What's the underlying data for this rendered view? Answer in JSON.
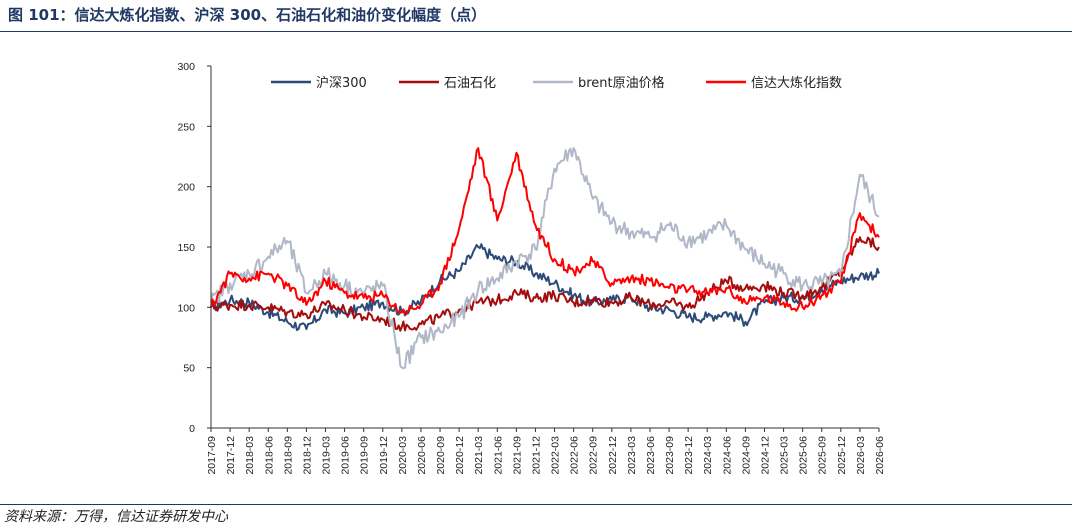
{
  "header": {
    "title": "图 101：信达大炼化指数、沪深 300、石油石化和油价变化幅度（点）"
  },
  "footer": {
    "source": "资料来源：万得，信达证券研发中心"
  },
  "colors": {
    "hs300": "#2e4a78",
    "petro": "#a50d0d",
    "brent": "#b0b8c8",
    "xinda": "#ff0000",
    "accent": "#1f3864"
  },
  "chart_data": {
    "type": "line",
    "title": "",
    "xlabel": "",
    "ylabel": "",
    "ylim": [
      0,
      300
    ],
    "yticks": [
      0,
      50,
      100,
      150,
      200,
      250,
      300
    ],
    "grid": false,
    "legend_position": "top",
    "x": [
      "2017-09",
      "2017-12",
      "2018-03",
      "2018-06",
      "2018-09",
      "2018-12",
      "2019-03",
      "2019-06",
      "2019-09",
      "2019-12",
      "2020-03",
      "2020-06",
      "2020-09",
      "2020-12",
      "2021-03",
      "2021-06",
      "2021-09",
      "2021-12",
      "2022-03",
      "2022-06",
      "2022-09",
      "2022-12",
      "2023-03",
      "2023-06",
      "2023-09",
      "2023-12",
      "2024-03",
      "2024-06",
      "2024-09",
      "2024-12",
      "2025-03",
      "2025-06",
      "2025-09",
      "2025-12",
      "2026-03",
      "2026-06"
    ],
    "series": [
      {
        "name": "沪深300",
        "color": "#2e4a78",
        "values": [
          100,
          106,
          104,
          96,
          88,
          82,
          98,
          95,
          100,
          104,
          96,
          105,
          122,
          130,
          150,
          140,
          138,
          128,
          120,
          110,
          104,
          106,
          108,
          100,
          98,
          92,
          92,
          96,
          88,
          104,
          108,
          108,
          115,
          122,
          126,
          128
        ]
      },
      {
        "name": "石油石化",
        "color": "#a50d0d",
        "values": [
          100,
          102,
          102,
          100,
          96,
          94,
          102,
          98,
          92,
          90,
          84,
          86,
          92,
          98,
          104,
          106,
          112,
          108,
          110,
          104,
          106,
          104,
          108,
          102,
          104,
          100,
          112,
          122,
          116,
          118,
          112,
          110,
          116,
          130,
          158,
          150
        ]
      },
      {
        "name": "brent原油价格",
        "color": "#b0b8c8",
        "values": [
          104,
          120,
          128,
          142,
          155,
          112,
          128,
          118,
          112,
          118,
          50,
          75,
          80,
          92,
          115,
          124,
          138,
          148,
          215,
          232,
          190,
          170,
          162,
          158,
          168,
          155,
          160,
          168,
          148,
          136,
          128,
          118,
          120,
          126,
          210,
          175
        ]
      },
      {
        "name": "信达大炼化指数",
        "color": "#ff0000",
        "values": [
          100,
          128,
          124,
          128,
          118,
          102,
          122,
          112,
          108,
          110,
          96,
          102,
          120,
          165,
          232,
          172,
          228,
          168,
          140,
          130,
          138,
          120,
          124,
          122,
          116,
          114,
          112,
          116,
          104,
          108,
          104,
          100,
          110,
          120,
          178,
          158
        ]
      }
    ]
  }
}
